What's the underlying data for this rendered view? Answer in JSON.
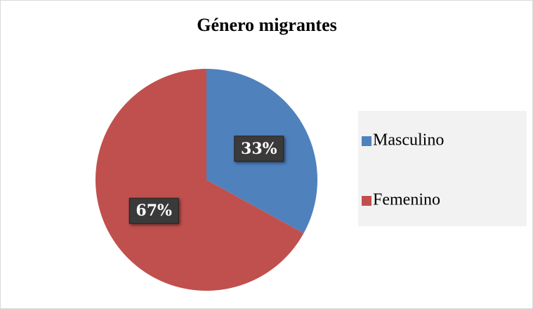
{
  "chart_data": {
    "type": "pie",
    "title": "Género migrantes",
    "categories": [
      "Masculino",
      "Femenino"
    ],
    "values": [
      33,
      67
    ],
    "value_labels": [
      "33%",
      "67%"
    ],
    "colors": [
      "#4f81bd",
      "#c0504d"
    ],
    "legend": "right"
  }
}
